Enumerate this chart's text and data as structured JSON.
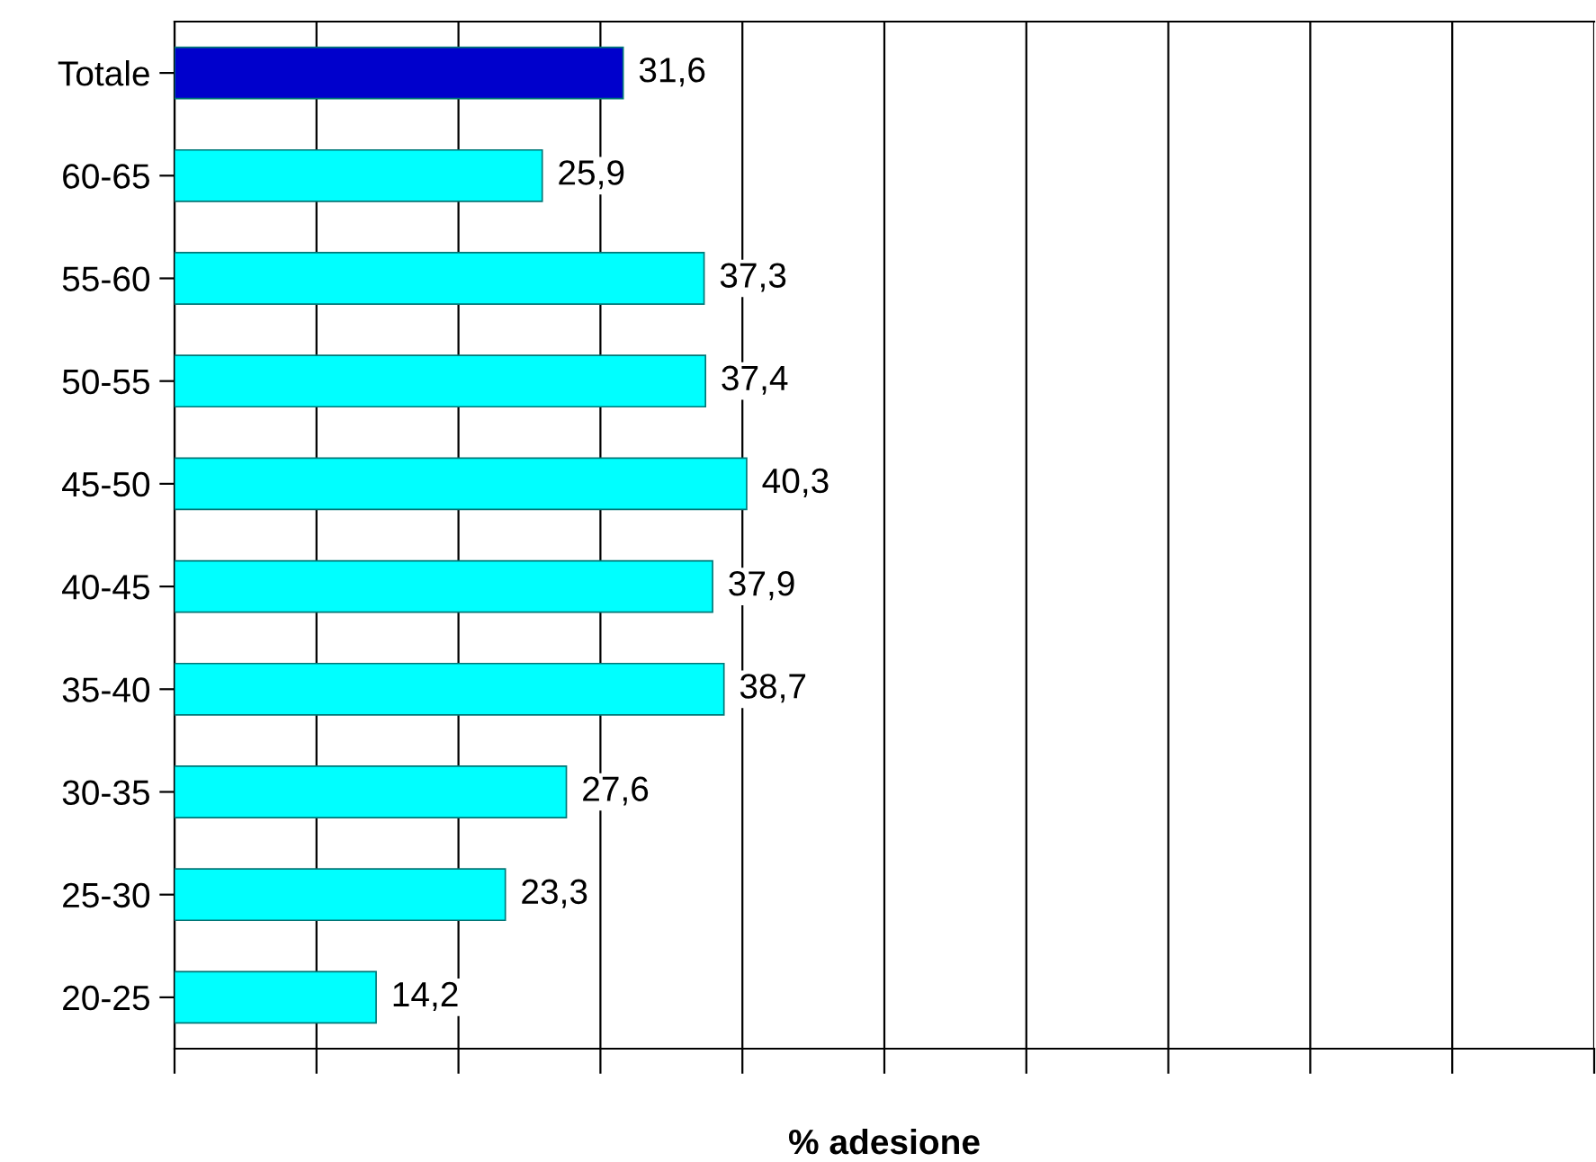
{
  "chart_data": {
    "type": "bar",
    "orientation": "horizontal",
    "xlabel": "% adesione",
    "categories": [
      "Totale",
      "60-65",
      "55-60",
      "50-55",
      "45-50",
      "40-45",
      "35-40",
      "30-35",
      "25-30",
      "20-25"
    ],
    "values": [
      31.6,
      25.9,
      37.3,
      37.4,
      40.3,
      37.9,
      38.7,
      27.6,
      23.3,
      14.2
    ],
    "value_labels": [
      "31,6",
      "25,9",
      "37,3",
      "37,4",
      "40,3",
      "37,9",
      "38,7",
      "27,6",
      "23,3",
      "14,2"
    ],
    "colors": [
      "#0000cc",
      "#00ffff",
      "#00ffff",
      "#00ffff",
      "#00ffff",
      "#00ffff",
      "#00ffff",
      "#00ffff",
      "#00ffff",
      "#00ffff"
    ],
    "xlim": [
      0,
      100
    ],
    "xticks": [
      {
        "value": 0,
        "label": null
      },
      {
        "value": 10,
        "label": null
      },
      {
        "value": 20,
        "label": null
      },
      {
        "value": 30,
        "label": null
      },
      {
        "value": 40,
        "label": null
      },
      {
        "value": 50,
        "label": null
      },
      {
        "value": 60,
        "label": null
      },
      {
        "value": 70,
        "label": null
      },
      {
        "value": 80,
        "label": null
      },
      {
        "value": 90,
        "label": null
      },
      {
        "value": 100,
        "label": null
      }
    ],
    "grid": "x",
    "tick_labels": "y"
  }
}
